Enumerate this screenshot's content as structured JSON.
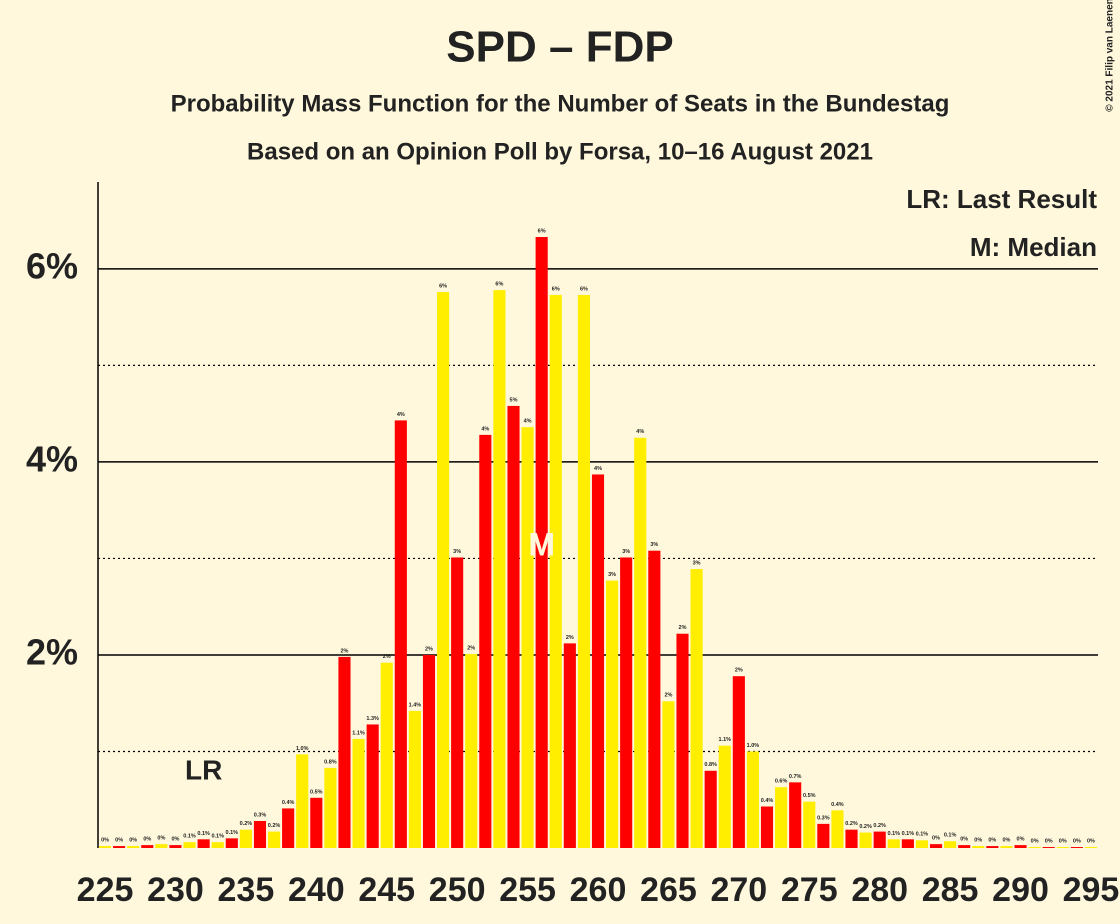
{
  "chart_data": {
    "type": "bar",
    "title": "SPD – FDP",
    "subtitle": "Probability Mass Function for the Number of Seats in the Bundestag",
    "subtitle2": "Based on an Opinion Poll by Forsa, 10–16 August 2021",
    "copyright": "© 2021 Filip van Laenen",
    "x": [
      225,
      226,
      227,
      228,
      229,
      230,
      231,
      232,
      233,
      234,
      235,
      236,
      237,
      238,
      239,
      240,
      241,
      242,
      243,
      244,
      245,
      246,
      247,
      248,
      249,
      250,
      251,
      252,
      253,
      254,
      255,
      256,
      257,
      258,
      259,
      260,
      261,
      262,
      263,
      264,
      265,
      266,
      267,
      268,
      269,
      270,
      271,
      272,
      273,
      274,
      275,
      276,
      277,
      278,
      279,
      280,
      281,
      282,
      283,
      284,
      285,
      286,
      287,
      288,
      289,
      290,
      291,
      292,
      293,
      294,
      295
    ],
    "values": [
      0.02,
      0.02,
      0.02,
      0.03,
      0.04,
      0.03,
      0.06,
      0.09,
      0.06,
      0.1,
      0.19,
      0.28,
      0.17,
      0.41,
      0.97,
      0.52,
      0.83,
      1.98,
      1.13,
      1.28,
      1.92,
      4.43,
      1.42,
      2.0,
      5.76,
      3.01,
      2.01,
      4.28,
      5.78,
      4.58,
      4.36,
      6.33,
      5.73,
      2.12,
      5.73,
      3.87,
      2.77,
      3.01,
      4.25,
      3.08,
      1.52,
      2.22,
      2.89,
      0.8,
      1.06,
      1.78,
      1.0,
      0.43,
      0.63,
      0.68,
      0.48,
      0.25,
      0.39,
      0.19,
      0.16,
      0.17,
      0.09,
      0.09,
      0.08,
      0.04,
      0.07,
      0.03,
      0.02,
      0.02,
      0.02,
      0.03,
      0.01,
      0.01,
      0.01,
      0.01,
      0.01
    ],
    "value_labels": [
      "0%",
      "0%",
      "0%",
      "0%",
      "0%",
      "0%",
      "0.1%",
      "0.1%",
      "0.1%",
      "0.1%",
      "0.2%",
      "0.3%",
      "0.2%",
      "0.4%",
      "1.0%",
      "0.5%",
      "0.8%",
      "2%",
      "1.1%",
      "1.3%",
      "2%",
      "4%",
      "1.4%",
      "2%",
      "6%",
      "3%",
      "2%",
      "4%",
      "6%",
      "5%",
      "4%",
      "6%",
      "6%",
      "2%",
      "6%",
      "4%",
      "3%",
      "3%",
      "4%",
      "3%",
      "2%",
      "2%",
      "3%",
      "0.8%",
      "1.1%",
      "2%",
      "1.0%",
      "0.4%",
      "0.6%",
      "0.7%",
      "0.5%",
      "0.3%",
      "0.4%",
      "0.2%",
      "0.2%",
      "0.2%",
      "0.1%",
      "0.1%",
      "0.1%",
      "0%",
      "0.1%",
      "0%",
      "0%",
      "0%",
      "0%",
      "0%",
      "0%",
      "0%",
      "0%",
      "0%",
      "0%"
    ],
    "colors": [
      "#ff0000",
      "#ffee00"
    ],
    "xlim": [
      224.5,
      295.5
    ],
    "xticks": [
      225,
      230,
      235,
      240,
      245,
      250,
      255,
      260,
      265,
      270,
      275,
      280,
      285,
      290,
      295
    ],
    "ylim": [
      0,
      6.9
    ],
    "yticks": [
      {
        "value": 2,
        "label": "2%"
      },
      {
        "value": 4,
        "label": "4%"
      },
      {
        "value": 6,
        "label": "6%"
      }
    ],
    "minor_yticks": [
      1,
      3,
      5
    ],
    "annotations": [
      {
        "text": "LR",
        "x": 232
      },
      {
        "text": "M",
        "x": 256
      }
    ],
    "legend": [
      "LR: Last Result",
      "M: Median"
    ]
  }
}
